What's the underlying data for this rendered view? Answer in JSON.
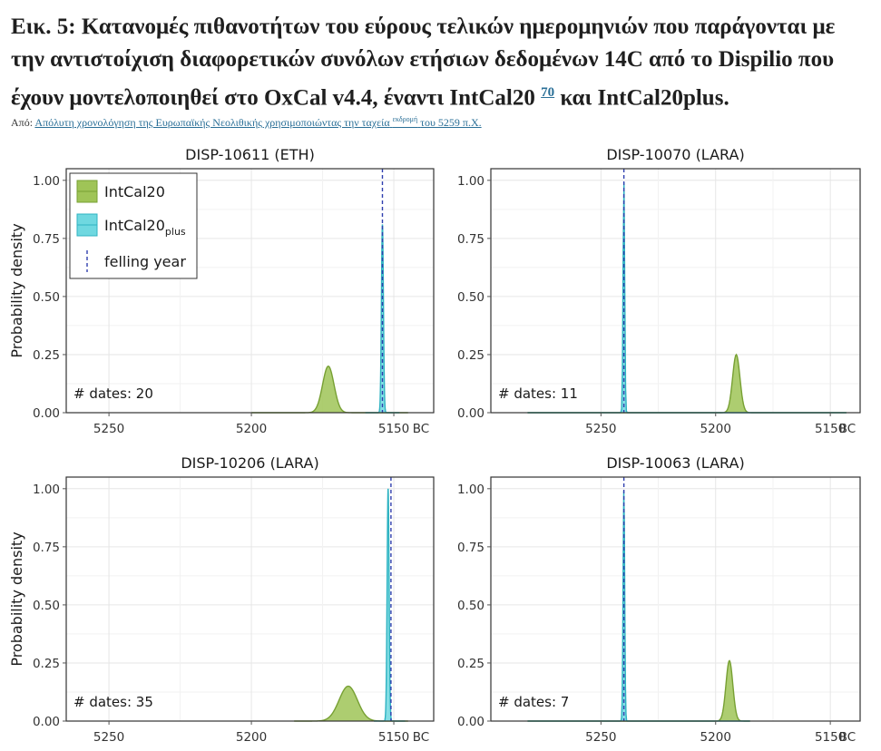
{
  "caption": {
    "text": "Εικ. 5: Κατανομές πιθανοτήτων του εύρους τελικών ημερομηνιών που παράγονται με την αντιστοίχιση διαφορετικών συνόλων ετήσιων δεδομένων 14C από το Dispilio που έχουν μοντελοποιηθεί στο OxCal v4.4, έναντι IntCal20",
    "ref": "70",
    "tail": "και IntCal20plus."
  },
  "source": {
    "prefix": "Από:",
    "link_main": "Απόλυτη χρονολόγηση της Ευρωπαϊκής Νεολιθικής χρησιμοποιώντας την ταχεία",
    "link_sup": "εκδρομή",
    "link_tail": "του 5259 π.Χ."
  },
  "colors": {
    "intcal20_fill": "#9fc457",
    "intcal20_line": "#77a033",
    "intcal20plus_fill": "#6fd8e0",
    "intcal20plus_line": "#2fb3c2",
    "felling": "#2f3fae",
    "grid": "#e6e6e6",
    "frame": "#333333"
  },
  "legend": {
    "items": [
      {
        "label": "IntCal20",
        "sub": ""
      },
      {
        "label": "IntCal20",
        "sub": "plus"
      },
      {
        "label": "felling year",
        "sub": ""
      }
    ]
  },
  "chart_data": [
    {
      "type": "area",
      "title": "DISP-10611 (ETH)",
      "ylabel": "Probability density",
      "x_ticks": [
        "5250",
        "5200",
        "5150",
        "BC"
      ],
      "y_ticks": [
        "0.00",
        "0.25",
        "0.50",
        "0.75",
        "1.00"
      ],
      "xlim": [
        5265,
        5136
      ],
      "ylim": [
        0,
        1.05
      ],
      "count_label": "# dates: 20",
      "felling_year": 5154,
      "series": [
        {
          "name": "IntCal20",
          "range": [
            5200,
            5145
          ],
          "peak_x": 5173,
          "peak_y": 0.2,
          "sigma": 2.0
        },
        {
          "name": "IntCal20plus",
          "range": [
            5160,
            5148
          ],
          "peak_x": 5154,
          "peak_y": 0.81,
          "sigma": 0.35
        }
      ]
    },
    {
      "type": "area",
      "title": "DISP-10070 (LARA)",
      "ylabel": "",
      "x_ticks": [
        "5250",
        "5200",
        "5150",
        "BC"
      ],
      "y_ticks": [
        "0.00",
        "0.25",
        "0.50",
        "0.75",
        "1.00"
      ],
      "xlim": [
        5298,
        5137
      ],
      "ylim": [
        0,
        1.05
      ],
      "count_label": "# dates: 11",
      "felling_year": 5240,
      "series": [
        {
          "name": "IntCal20",
          "range": [
            5282,
            5143
          ],
          "peak_x": 5191,
          "peak_y": 0.25,
          "sigma": 1.6
        },
        {
          "name": "IntCal20plus",
          "range": [
            5282,
            5143
          ],
          "peak_x": 5240,
          "peak_y": 1.0,
          "sigma": 0.35
        }
      ]
    },
    {
      "type": "area",
      "title": "DISP-10206 (LARA)",
      "ylabel": "Probability density",
      "x_ticks": [
        "5250",
        "5200",
        "5150",
        "BC"
      ],
      "y_ticks": [
        "0.00",
        "0.25",
        "0.50",
        "0.75",
        "1.00"
      ],
      "xlim": [
        5265,
        5136
      ],
      "ylim": [
        0,
        1.05
      ],
      "count_label": "# dates: 35",
      "felling_year": 5151,
      "series": [
        {
          "name": "IntCal20",
          "range": [
            5185,
            5145
          ],
          "peak_x": 5166,
          "peak_y": 0.15,
          "sigma": 3.2
        },
        {
          "name": "IntCal20plus",
          "range": [
            5157,
            5146
          ],
          "peak_x": 5152,
          "peak_y": 1.0,
          "sigma": 0.35
        }
      ]
    },
    {
      "type": "area",
      "title": "DISP-10063 (LARA)",
      "ylabel": "",
      "x_ticks": [
        "5250",
        "5200",
        "5150",
        "BC"
      ],
      "y_ticks": [
        "0.00",
        "0.25",
        "0.50",
        "0.75",
        "1.00"
      ],
      "xlim": [
        5298,
        5137
      ],
      "ylim": [
        0,
        1.05
      ],
      "count_label": "# dates: 7",
      "felling_year": 5240,
      "series": [
        {
          "name": "IntCal20",
          "range": [
            5282,
            5185
          ],
          "peak_x": 5194,
          "peak_y": 0.26,
          "sigma": 1.5
        },
        {
          "name": "IntCal20plus",
          "range": [
            5282,
            5185
          ],
          "peak_x": 5240,
          "peak_y": 1.0,
          "sigma": 0.35
        }
      ]
    }
  ]
}
